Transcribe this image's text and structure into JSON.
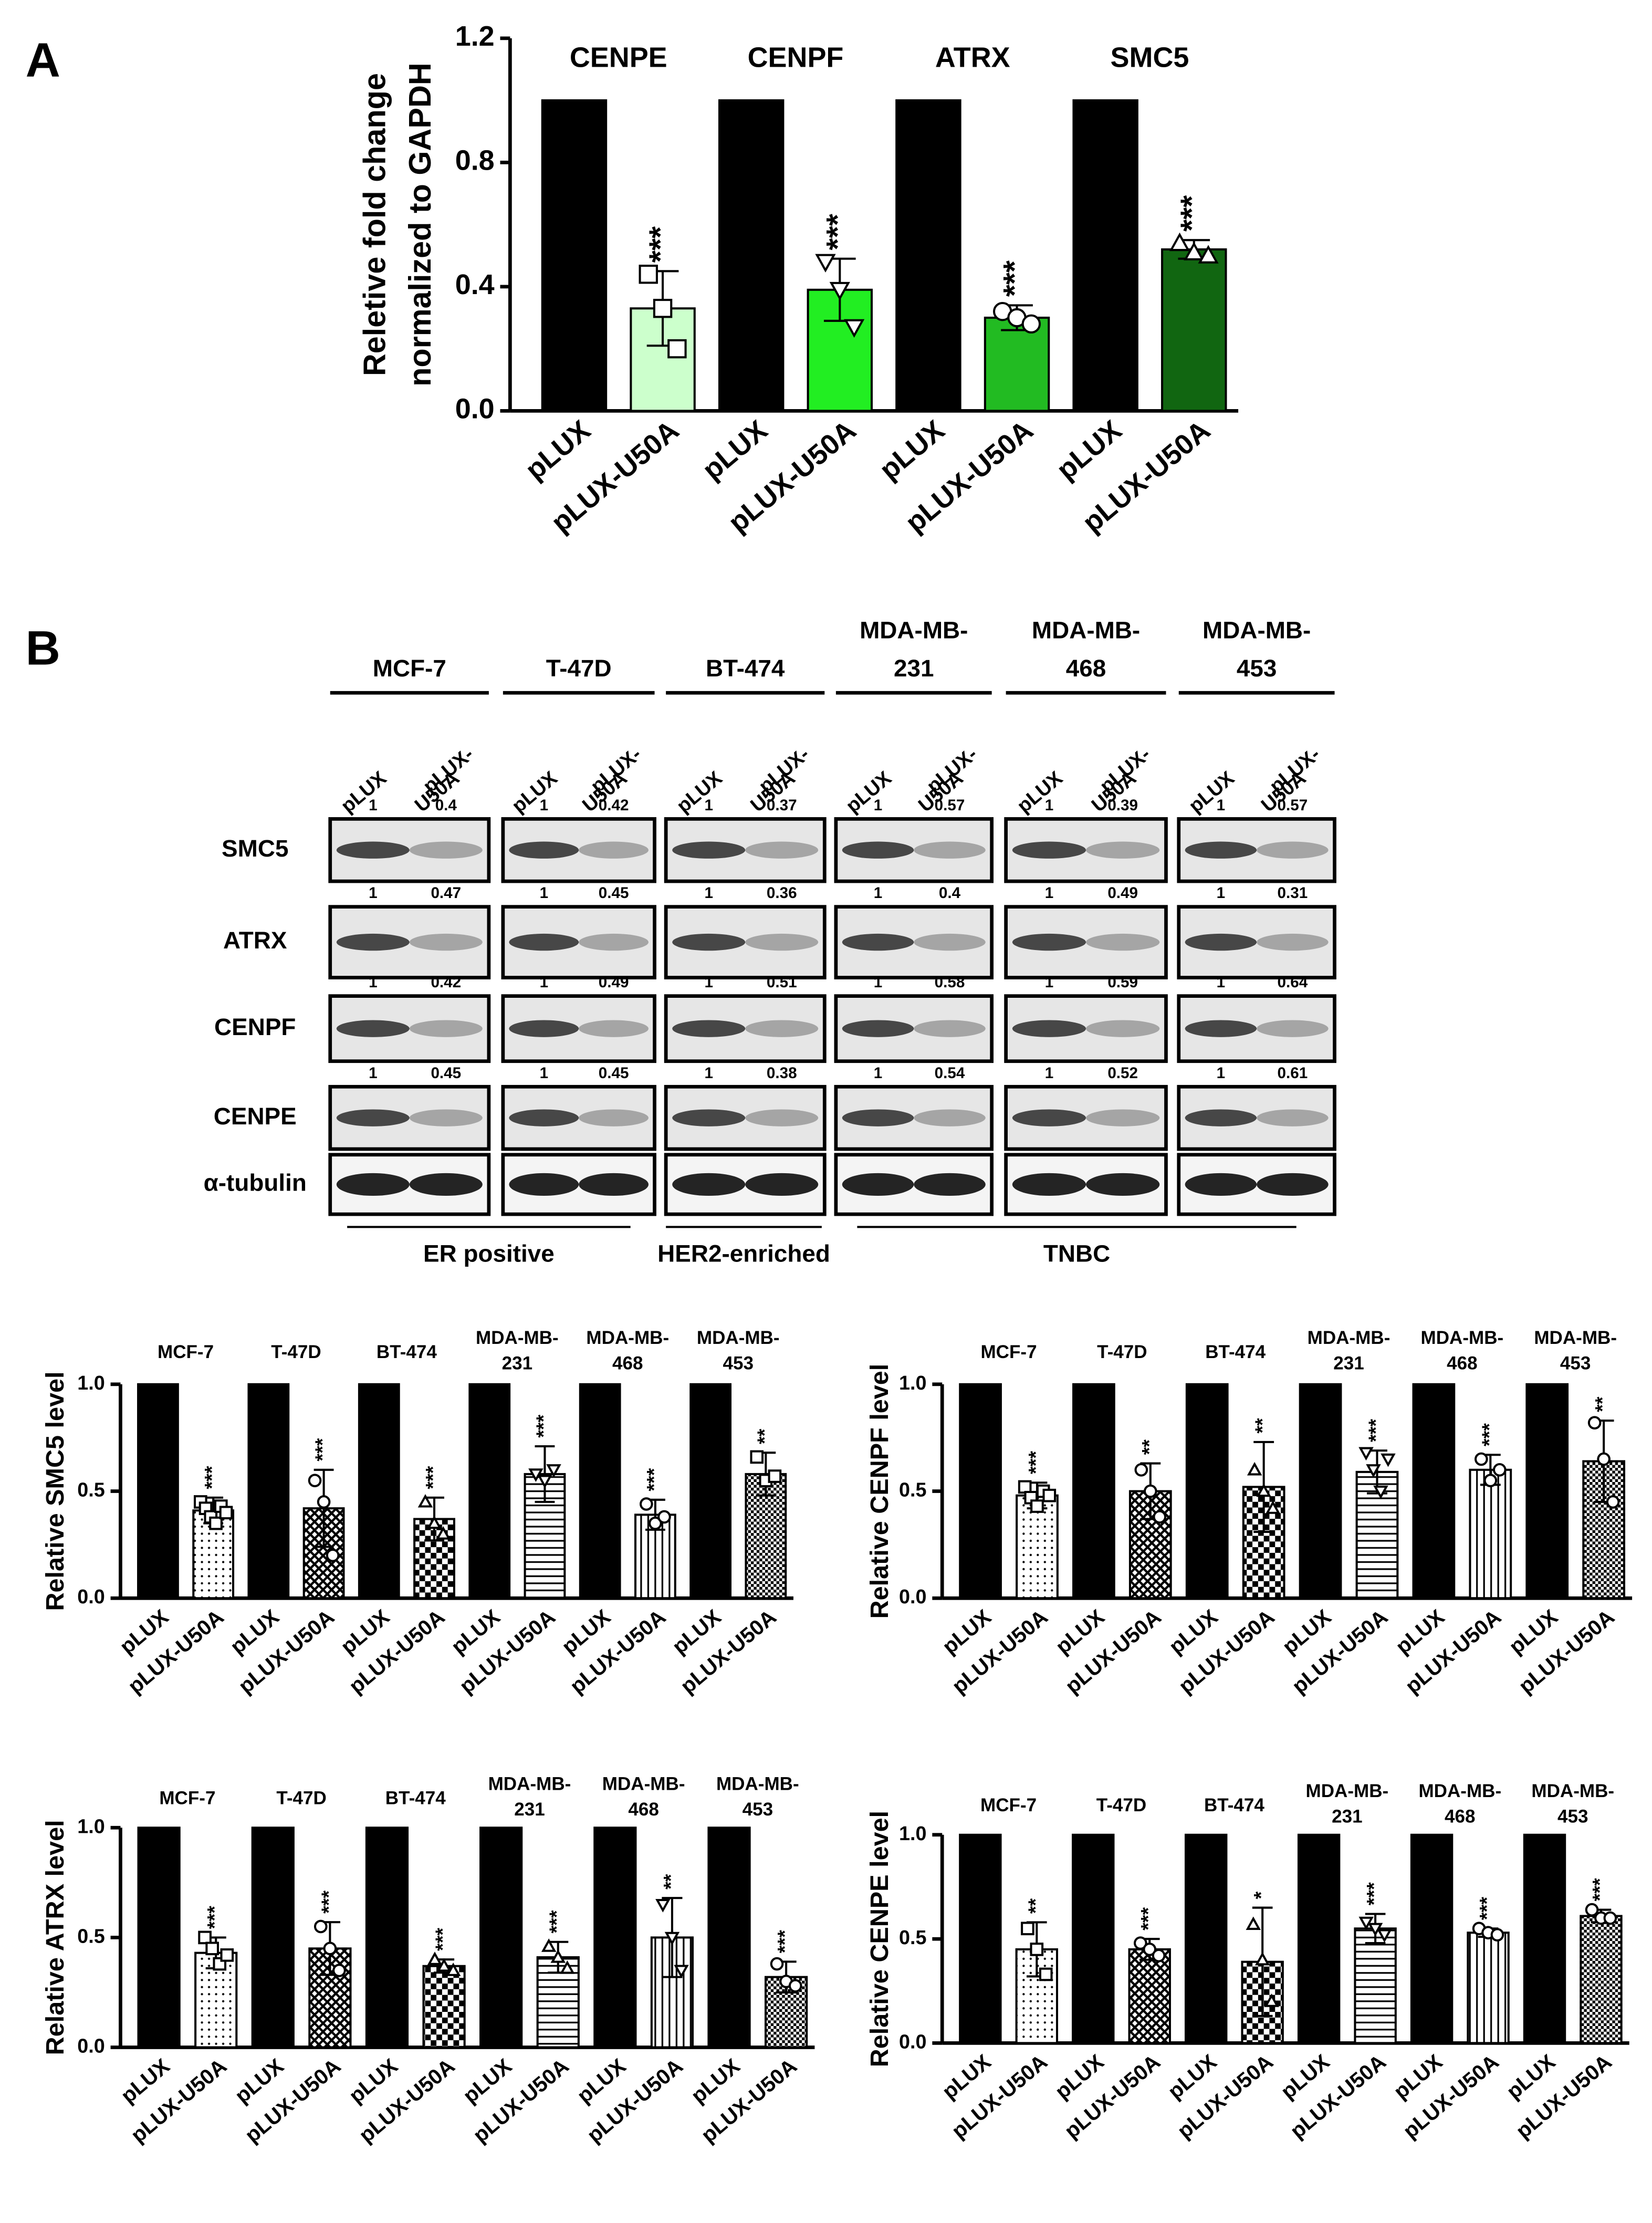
{
  "panel_labels": [
    "A",
    "B"
  ],
  "chart_data": [
    {
      "type": "bar",
      "ylabel": [
        "Reletive fold change",
        "normalized to GAPDH"
      ],
      "groups": [
        [
          "CENPE"
        ],
        [
          "CENPF"
        ],
        [
          "ATRX"
        ],
        [
          "SMC5"
        ]
      ],
      "categories": [
        "pLUX",
        "pLUX-U50A",
        "pLUX",
        "pLUX-U50A",
        "pLUX",
        "pLUX-U50A",
        "pLUX",
        "pLUX-U50A"
      ],
      "values": [
        1,
        0.33,
        1,
        0.39,
        1,
        0.3,
        1,
        0.52
      ],
      "errors": [
        null,
        0.12,
        null,
        0.1,
        null,
        0.04,
        null,
        0.03
      ],
      "points": [
        null,
        [
          0.44,
          0.33,
          0.2
        ],
        null,
        [
          0.48,
          0.39,
          0.27
        ],
        null,
        [
          0.32,
          0.3,
          0.28
        ],
        null,
        [
          0.54,
          0.51,
          0.5
        ]
      ],
      "annotations": [
        null,
        "***",
        null,
        "***",
        null,
        "***",
        null,
        "***"
      ],
      "colors": [
        "#000000",
        "#ccffcc",
        "#000000",
        "#22ee22",
        "#000000",
        "#22bb22",
        "#000000",
        "#116611"
      ],
      "ylim": [
        0,
        1.2
      ],
      "yticks": [
        {
          "value": 0,
          "label": "0.0"
        },
        0.4,
        0.8,
        1.2
      ]
    },
    {
      "type": "bar",
      "ylabel": "Relative SMC5 level",
      "groups": [
        [
          "MCF-7"
        ],
        [
          "T-47D"
        ],
        [
          "BT-474"
        ],
        [
          "MDA-MB-",
          "231"
        ],
        [
          "MDA-MB-",
          "468"
        ],
        [
          "MDA-MB-",
          "453"
        ]
      ],
      "categories": [
        "pLUX",
        "pLUX-U50A",
        "pLUX",
        "pLUX-U50A",
        "pLUX",
        "pLUX-U50A",
        "pLUX",
        "pLUX-U50A",
        "pLUX",
        "pLUX-U50A",
        "pLUX",
        "pLUX-U50A"
      ],
      "values": [
        1,
        0.41,
        1,
        0.42,
        1,
        0.37,
        1,
        0.58,
        1,
        0.39,
        1,
        0.58
      ],
      "errors": [
        null,
        0.06,
        null,
        0.18,
        null,
        0.1,
        null,
        0.13,
        null,
        0.07,
        null,
        0.1
      ],
      "points": [
        null,
        [
          0.45,
          0.42,
          0.38,
          0.35,
          0.43,
          0.4
        ],
        null,
        [
          0.55,
          0.45,
          0.2
        ],
        null,
        [
          0.45,
          0.35,
          0.3
        ],
        null,
        [
          0.58,
          0.55,
          0.6
        ],
        null,
        [
          0.44,
          0.35,
          0.38
        ],
        null,
        [
          0.66,
          0.55,
          0.57
        ]
      ],
      "annotations": [
        null,
        "***",
        null,
        "***",
        null,
        "***",
        null,
        "***",
        null,
        "***",
        null,
        "**"
      ],
      "color": "#000000",
      "ylim": [
        0,
        1
      ],
      "yticks": [
        {
          "value": 0,
          "label": "0.0"
        },
        0.5,
        {
          "value": 1,
          "label": "1.0"
        }
      ]
    },
    {
      "type": "bar",
      "ylabel": "Relative CENPF level",
      "groups": [
        [
          "MCF-7"
        ],
        [
          "T-47D"
        ],
        [
          "BT-474"
        ],
        [
          "MDA-MB-",
          "231"
        ],
        [
          "MDA-MB-",
          "468"
        ],
        [
          "MDA-MB-",
          "453"
        ]
      ],
      "categories": [
        "pLUX",
        "pLUX-U50A",
        "pLUX",
        "pLUX-U50A",
        "pLUX",
        "pLUX-U50A",
        "pLUX",
        "pLUX-U50A",
        "pLUX",
        "pLUX-U50A",
        "pLUX",
        "pLUX-U50A"
      ],
      "values": [
        1,
        0.48,
        1,
        0.5,
        1,
        0.52,
        1,
        0.59,
        1,
        0.6,
        1,
        0.64
      ],
      "errors": [
        null,
        0.06,
        null,
        0.13,
        null,
        0.21,
        null,
        0.1,
        null,
        0.07,
        null,
        0.19
      ],
      "points": [
        null,
        [
          0.52,
          0.47,
          0.43,
          0.5,
          0.48
        ],
        null,
        [
          0.6,
          0.5,
          0.38
        ],
        null,
        [
          0.6,
          0.5,
          0.42
        ],
        null,
        [
          0.68,
          0.6,
          0.5,
          0.65
        ],
        null,
        [
          0.65,
          0.55,
          0.6
        ],
        null,
        [
          0.82,
          0.65,
          0.45
        ]
      ],
      "annotations": [
        null,
        "***",
        null,
        "**",
        null,
        "**",
        null,
        "***",
        null,
        "***",
        null,
        "**"
      ],
      "color": "#000000",
      "ylim": [
        0,
        1
      ],
      "yticks": [
        {
          "value": 0,
          "label": "0.0"
        },
        0.5,
        {
          "value": 1,
          "label": "1.0"
        }
      ]
    },
    {
      "type": "bar",
      "ylabel": "Relative ATRX level",
      "groups": [
        [
          "MCF-7"
        ],
        [
          "T-47D"
        ],
        [
          "BT-474"
        ],
        [
          "MDA-MB-",
          "231"
        ],
        [
          "MDA-MB-",
          "468"
        ],
        [
          "MDA-MB-",
          "453"
        ]
      ],
      "categories": [
        "pLUX",
        "pLUX-U50A",
        "pLUX",
        "pLUX-U50A",
        "pLUX",
        "pLUX-U50A",
        "pLUX",
        "pLUX-U50A",
        "pLUX",
        "pLUX-U50A",
        "pLUX",
        "pLUX-U50A"
      ],
      "values": [
        1,
        0.43,
        1,
        0.45,
        1,
        0.37,
        1,
        0.41,
        1,
        0.5,
        1,
        0.32
      ],
      "errors": [
        null,
        0.07,
        null,
        0.12,
        null,
        0.03,
        null,
        0.07,
        null,
        0.18,
        null,
        0.07
      ],
      "points": [
        null,
        [
          0.5,
          0.45,
          0.38,
          0.42
        ],
        null,
        [
          0.55,
          0.45,
          0.35
        ],
        null,
        [
          0.4,
          0.37,
          0.35
        ],
        null,
        [
          0.46,
          0.41,
          0.36
        ],
        null,
        [
          0.65,
          0.5,
          0.35
        ],
        null,
        [
          0.38,
          0.3,
          0.28
        ]
      ],
      "annotations": [
        null,
        "***",
        null,
        "***",
        null,
        "***",
        null,
        "***",
        null,
        "**",
        null,
        "***"
      ],
      "color": "#000000",
      "ylim": [
        0,
        1
      ],
      "yticks": [
        {
          "value": 0,
          "label": "0.0"
        },
        0.5,
        {
          "value": 1,
          "label": "1.0"
        }
      ]
    },
    {
      "type": "bar",
      "ylabel": "Relative CENPE level",
      "groups": [
        [
          "MCF-7"
        ],
        [
          "T-47D"
        ],
        [
          "BT-474"
        ],
        [
          "MDA-MB-",
          "231"
        ],
        [
          "MDA-MB-",
          "468"
        ],
        [
          "MDA-MB-",
          "453"
        ]
      ],
      "categories": [
        "pLUX",
        "pLUX-U50A",
        "pLUX",
        "pLUX-U50A",
        "pLUX",
        "pLUX-U50A",
        "pLUX",
        "pLUX-U50A",
        "pLUX",
        "pLUX-U50A",
        "pLUX",
        "pLUX-U50A"
      ],
      "values": [
        1,
        0.45,
        1,
        0.45,
        1,
        0.39,
        1,
        0.55,
        1,
        0.53,
        1,
        0.61
      ],
      "errors": [
        null,
        0.13,
        null,
        0.05,
        null,
        0.26,
        null,
        0.07,
        null,
        0.02,
        null,
        0.03
      ],
      "points": [
        null,
        [
          0.55,
          0.45,
          0.33
        ],
        null,
        [
          0.48,
          0.45,
          0.42
        ],
        null,
        [
          0.57,
          0.4,
          0.2
        ],
        null,
        [
          0.58,
          0.55,
          0.52
        ],
        null,
        [
          0.55,
          0.53,
          0.52
        ],
        null,
        [
          0.64,
          0.6,
          0.6
        ]
      ],
      "annotations": [
        null,
        "**",
        null,
        "***",
        null,
        "*",
        null,
        "***",
        null,
        "***",
        null,
        "***"
      ],
      "color": "#000000",
      "ylim": [
        0,
        1
      ],
      "yticks": [
        {
          "value": 0,
          "label": "0.0"
        },
        0.5,
        {
          "value": 1,
          "label": "1.0"
        }
      ]
    }
  ],
  "blot": {
    "cell_lines": [
      [
        "MCF-7"
      ],
      [
        "T-47D"
      ],
      [
        "BT-474"
      ],
      [
        "MDA-MB-",
        "231"
      ],
      [
        "MDA-MB-",
        "468"
      ],
      [
        "MDA-MB-",
        "453"
      ]
    ],
    "lanes": [
      [
        "pLUX"
      ],
      [
        "pLUX-",
        "U50A"
      ]
    ],
    "rows": [
      {
        "protein": "SMC5",
        "ratios": [
          [
            1,
            0.4
          ],
          [
            1,
            0.42
          ],
          [
            1,
            0.37
          ],
          [
            1,
            0.57
          ],
          [
            1,
            0.39
          ],
          [
            1,
            0.57
          ]
        ]
      },
      {
        "protein": "ATRX",
        "ratios": [
          [
            1,
            0.47
          ],
          [
            1,
            0.45
          ],
          [
            1,
            0.36
          ],
          [
            1,
            0.4
          ],
          [
            1,
            0.49
          ],
          [
            1,
            0.31
          ]
        ]
      },
      {
        "protein": "CENPF",
        "ratios": [
          [
            1,
            0.42
          ],
          [
            1,
            0.49
          ],
          [
            1,
            0.51
          ],
          [
            1,
            0.58
          ],
          [
            1,
            0.59
          ],
          [
            1,
            0.64
          ]
        ]
      },
      {
        "protein": "CENPE",
        "ratios": [
          [
            1,
            0.45
          ],
          [
            1,
            0.45
          ],
          [
            1,
            0.38
          ],
          [
            1,
            0.54
          ],
          [
            1,
            0.52
          ],
          [
            1,
            0.61
          ]
        ]
      },
      {
        "protein": "α-tubulin"
      }
    ],
    "subtypes": [
      "ER positive",
      "HER2-enriched",
      "TNBC"
    ]
  }
}
